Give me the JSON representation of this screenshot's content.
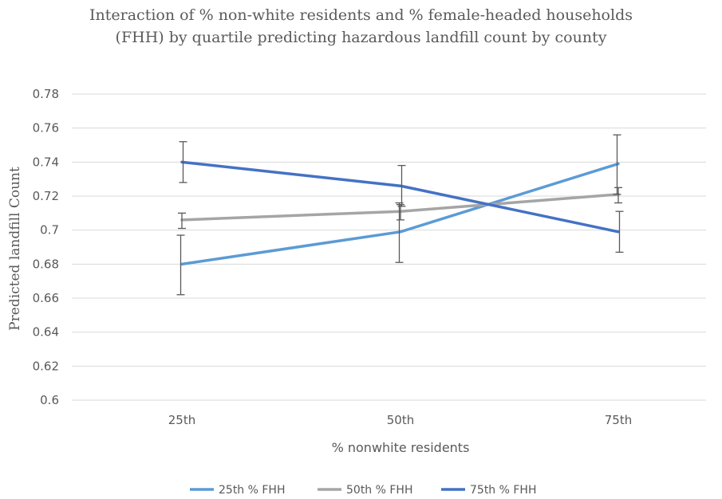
{
  "chart_data": {
    "type": "line",
    "title": [
      "Interaction of % non-white residents and % female-headed households",
      "(FHH) by quartile predicting hazardous landfill count by county"
    ],
    "xlabel": "% nonwhite residents",
    "ylabel": "Predicted landfill Count",
    "categories": [
      "25th",
      "50th",
      "75th"
    ],
    "ylim": [
      0.6,
      0.78
    ],
    "yticks": [
      0.6,
      0.62,
      0.64,
      0.66,
      0.68,
      0.7,
      0.72,
      0.74,
      0.76,
      0.78
    ],
    "ytick_labels": [
      "0.6",
      "0.62",
      "0.64",
      "0.66",
      "0.68",
      "0.7",
      "0.72",
      "0.74",
      "0.76",
      "0.78"
    ],
    "grid": true,
    "legend_position": "bottom",
    "series": [
      {
        "name": "25th % FHH",
        "color": "#5b9bd5",
        "values": [
          0.68,
          0.699,
          0.739
        ],
        "error_low": [
          0.662,
          0.681,
          0.721
        ],
        "error_high": [
          0.697,
          0.716,
          0.756
        ]
      },
      {
        "name": "50th % FHH",
        "color": "#a5a5a5",
        "values": [
          0.706,
          0.711,
          0.721
        ],
        "error_low": [
          0.701,
          0.706,
          0.716
        ],
        "error_high": [
          0.71,
          0.715,
          0.725
        ]
      },
      {
        "name": "75th % FHH",
        "color": "#4472c4",
        "values": [
          0.74,
          0.726,
          0.699
        ],
        "error_low": [
          0.728,
          0.714,
          0.687
        ],
        "error_high": [
          0.752,
          0.738,
          0.711
        ]
      }
    ]
  }
}
